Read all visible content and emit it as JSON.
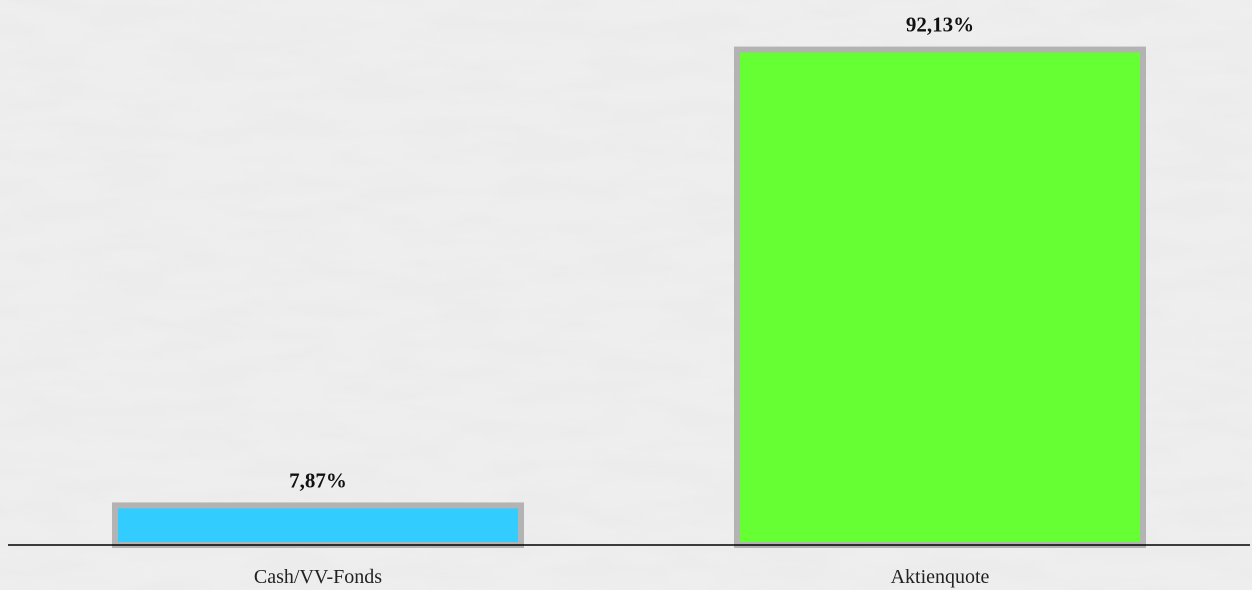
{
  "chart_data": {
    "type": "bar",
    "categories": [
      "Cash/VV-Fonds",
      "Aktienquote"
    ],
    "values": [
      7.87,
      92.13
    ],
    "value_labels": [
      "7,87%",
      "92,13%"
    ],
    "colors": [
      "#33ccff",
      "#66ff33"
    ],
    "border_color": "#b3b3b3",
    "axis_color": "#000000",
    "ylim": [
      0,
      100
    ],
    "grid": false,
    "legend": "none"
  }
}
